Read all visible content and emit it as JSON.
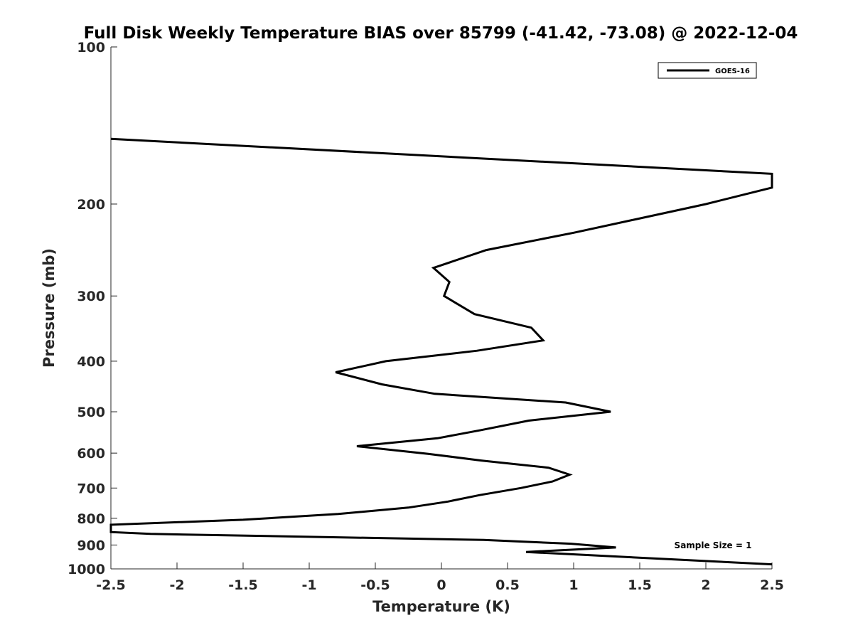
{
  "chart_data": {
    "type": "line",
    "title": "Full Disk Weekly Temperature BIAS over 85799 (-41.42, -73.08) @ 2022-12-04",
    "xlabel": "Temperature (K)",
    "ylabel": "Pressure (mb)",
    "xlim": [
      -2.5,
      2.5
    ],
    "ylim": [
      100,
      1000
    ],
    "y_scale": "log",
    "y_reversed": true,
    "xticks": [
      "-2.5",
      "-2",
      "-1.5",
      "-1",
      "-0.5",
      "0",
      "0.5",
      "1",
      "1.5",
      "2",
      "2.5"
    ],
    "xtick_values": [
      -2.5,
      -2,
      -1.5,
      -1,
      -0.5,
      0,
      0.5,
      1,
      1.5,
      2,
      2.5
    ],
    "yticks": [
      "100",
      "200",
      "300",
      "400",
      "500",
      "600",
      "700",
      "800",
      "900",
      "1000"
    ],
    "ytick_values": [
      100,
      200,
      300,
      400,
      500,
      600,
      700,
      800,
      900,
      1000
    ],
    "grid": false,
    "legend_position": "top-right",
    "annotation": "Sample Size = 1",
    "series": [
      {
        "name": "GOES-16",
        "color": "#000000",
        "points": [
          [
            -2.5,
            150
          ],
          [
            2.5,
            175
          ],
          [
            2.5,
            186
          ],
          [
            2.0,
            200
          ],
          [
            1.0,
            227
          ],
          [
            0.34,
            245
          ],
          [
            -0.06,
            265
          ],
          [
            0.06,
            282
          ],
          [
            0.02,
            300
          ],
          [
            0.25,
            325
          ],
          [
            0.68,
            345
          ],
          [
            0.77,
            365
          ],
          [
            0.27,
            382
          ],
          [
            -0.42,
            400
          ],
          [
            -0.8,
            420
          ],
          [
            -0.45,
            443
          ],
          [
            -0.05,
            462
          ],
          [
            0.94,
            480
          ],
          [
            1.28,
            500
          ],
          [
            0.66,
            520
          ],
          [
            0.3,
            542
          ],
          [
            -0.03,
            562
          ],
          [
            -0.64,
            582
          ],
          [
            -0.1,
            602
          ],
          [
            0.3,
            620
          ],
          [
            0.81,
            640
          ],
          [
            0.97,
            660
          ],
          [
            0.84,
            680
          ],
          [
            0.6,
            700
          ],
          [
            0.29,
            722
          ],
          [
            0.05,
            743
          ],
          [
            -0.25,
            763
          ],
          [
            -0.78,
            785
          ],
          [
            -1.5,
            805
          ],
          [
            -2.5,
            823
          ],
          [
            -2.5,
            850
          ],
          [
            -2.2,
            857
          ],
          [
            0.32,
            880
          ],
          [
            0.98,
            895
          ],
          [
            1.32,
            910
          ],
          [
            0.64,
            928
          ],
          [
            2.5,
            980
          ]
        ]
      }
    ]
  }
}
